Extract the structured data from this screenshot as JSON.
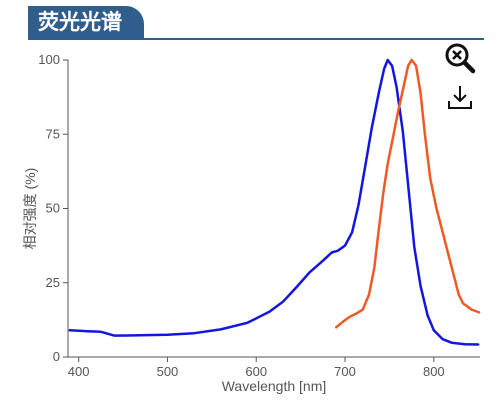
{
  "header": {
    "title": "荧光光谱"
  },
  "toolbar": {
    "zoom_icon": "zoom-out-magnifier-icon",
    "download_icon": "download-icon"
  },
  "colors": {
    "brand": "#2f5d8c",
    "excitation": "#1515e0",
    "emission": "#ee5a24"
  },
  "chart_data": {
    "type": "line",
    "xlabel": "Wavelength [nm]",
    "ylabel": "相对强度 (%)",
    "xlim": [
      388,
      852
    ],
    "ylim": [
      0,
      100
    ],
    "xticks": [
      400,
      500,
      600,
      700,
      800
    ],
    "yticks": [
      0,
      25,
      50,
      75,
      100
    ],
    "grid": false,
    "series": [
      {
        "color": "#1515e0",
        "points": [
          [
            390,
            9
          ],
          [
            410,
            8.7
          ],
          [
            425,
            8.5
          ],
          [
            440,
            7.2
          ],
          [
            470,
            7.3
          ],
          [
            500,
            7.5
          ],
          [
            530,
            8
          ],
          [
            560,
            9.3
          ],
          [
            590,
            11.5
          ],
          [
            615,
            15.3
          ],
          [
            630,
            18.6
          ],
          [
            645,
            23.4
          ],
          [
            660,
            28.5
          ],
          [
            675,
            32.4
          ],
          [
            685,
            35.2
          ],
          [
            692,
            35.8
          ],
          [
            700,
            37.5
          ],
          [
            708,
            42
          ],
          [
            715,
            51
          ],
          [
            722,
            63
          ],
          [
            730,
            77
          ],
          [
            738,
            89
          ],
          [
            744,
            97
          ],
          [
            748,
            100
          ],
          [
            753,
            98
          ],
          [
            758,
            91
          ],
          [
            765,
            76
          ],
          [
            772,
            55
          ],
          [
            778,
            37
          ],
          [
            785,
            24
          ],
          [
            793,
            14
          ],
          [
            800,
            9
          ],
          [
            810,
            6
          ],
          [
            820,
            4.8
          ],
          [
            835,
            4.3
          ],
          [
            850,
            4.2
          ]
        ]
      },
      {
        "color": "#ee5a24",
        "points": [
          [
            690,
            10
          ],
          [
            698,
            12
          ],
          [
            705,
            13.5
          ],
          [
            712,
            14.5
          ],
          [
            720,
            16
          ],
          [
            727,
            21
          ],
          [
            733,
            30
          ],
          [
            738,
            43
          ],
          [
            743,
            55
          ],
          [
            748,
            65
          ],
          [
            754,
            74
          ],
          [
            760,
            83
          ],
          [
            766,
            91
          ],
          [
            771,
            98
          ],
          [
            775,
            100
          ],
          [
            780,
            98
          ],
          [
            785,
            89
          ],
          [
            790,
            75
          ],
          [
            796,
            60
          ],
          [
            803,
            50
          ],
          [
            810,
            42
          ],
          [
            816,
            35
          ],
          [
            822,
            28
          ],
          [
            828,
            21
          ],
          [
            833,
            18
          ],
          [
            838,
            17
          ],
          [
            842,
            16
          ],
          [
            847,
            15.5
          ],
          [
            851,
            15
          ]
        ]
      }
    ]
  }
}
